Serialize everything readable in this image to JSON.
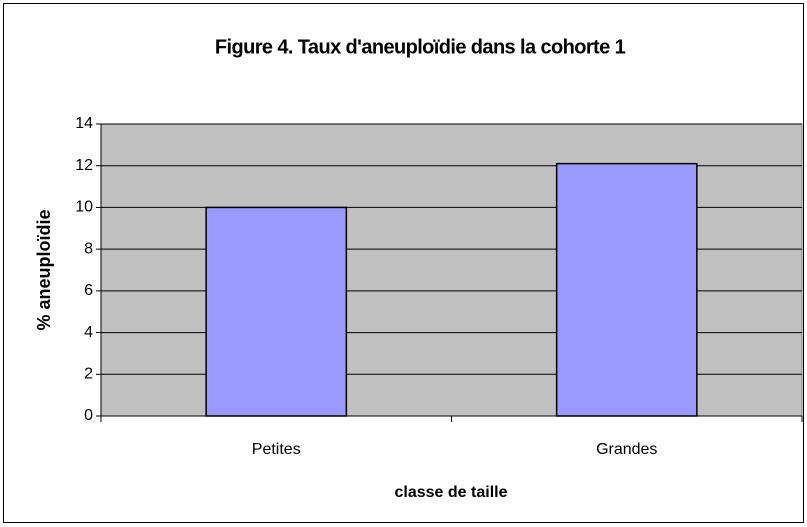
{
  "chart_data": {
    "type": "bar",
    "title": "Figure 4.  Taux d'aneuploïdie dans la cohorte 1",
    "x_label": "classe de taille",
    "y_label": "% aneuploïdie",
    "categories": [
      "Petites",
      "Grandes"
    ],
    "values": [
      10,
      12.1
    ],
    "color": "#9999ff",
    "ylim": [
      0,
      14
    ],
    "yticks": [
      0,
      2,
      4,
      6,
      8,
      10,
      12,
      14
    ],
    "grid": true
  }
}
